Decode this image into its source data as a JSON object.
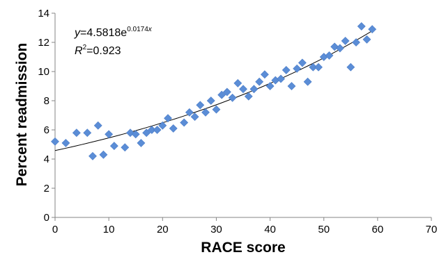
{
  "chart_data": {
    "type": "scatter",
    "title": "",
    "xlabel": "RACE score",
    "ylabel": "Percent readmission",
    "xlim": [
      0,
      70
    ],
    "ylim": [
      0,
      14
    ],
    "xticks": [
      "0",
      "10",
      "20",
      "30",
      "40",
      "50",
      "60",
      "70"
    ],
    "yticks": [
      "0",
      "2",
      "4",
      "6",
      "8",
      "10",
      "12",
      "14"
    ],
    "grid": false,
    "marker_color": "#5B8DD6",
    "trendline": {
      "type": "exponential",
      "a": 4.5818,
      "b": 0.0174,
      "equation_prefix": "y",
      "equation_eq": "=4.5818e",
      "equation_exp": "0.0174",
      "equation_exp_var": "x",
      "r2_label": "R",
      "r2_sup": "2",
      "r2_value": "=0.923"
    },
    "points": [
      {
        "x": 0,
        "y": 5.2
      },
      {
        "x": 2,
        "y": 5.1
      },
      {
        "x": 4,
        "y": 5.8
      },
      {
        "x": 6,
        "y": 5.8
      },
      {
        "x": 7,
        "y": 4.2
      },
      {
        "x": 8,
        "y": 6.3
      },
      {
        "x": 9,
        "y": 4.3
      },
      {
        "x": 10,
        "y": 5.7
      },
      {
        "x": 11,
        "y": 4.9
      },
      {
        "x": 13,
        "y": 4.8
      },
      {
        "x": 14,
        "y": 5.8
      },
      {
        "x": 15,
        "y": 5.7
      },
      {
        "x": 16,
        "y": 5.1
      },
      {
        "x": 17,
        "y": 5.8
      },
      {
        "x": 18,
        "y": 6.0
      },
      {
        "x": 19,
        "y": 6.0
      },
      {
        "x": 20,
        "y": 6.3
      },
      {
        "x": 21,
        "y": 6.8
      },
      {
        "x": 22,
        "y": 6.1
      },
      {
        "x": 24,
        "y": 6.5
      },
      {
        "x": 25,
        "y": 7.2
      },
      {
        "x": 26,
        "y": 6.9
      },
      {
        "x": 27,
        "y": 7.7
      },
      {
        "x": 28,
        "y": 7.2
      },
      {
        "x": 29,
        "y": 8.0
      },
      {
        "x": 30,
        "y": 7.4
      },
      {
        "x": 31,
        "y": 8.4
      },
      {
        "x": 32,
        "y": 8.6
      },
      {
        "x": 33,
        "y": 8.2
      },
      {
        "x": 34,
        "y": 9.2
      },
      {
        "x": 35,
        "y": 8.8
      },
      {
        "x": 36,
        "y": 8.3
      },
      {
        "x": 37,
        "y": 8.8
      },
      {
        "x": 38,
        "y": 9.3
      },
      {
        "x": 39,
        "y": 9.8
      },
      {
        "x": 40,
        "y": 9.0
      },
      {
        "x": 41,
        "y": 9.4
      },
      {
        "x": 42,
        "y": 9.5
      },
      {
        "x": 43,
        "y": 10.1
      },
      {
        "x": 44,
        "y": 9.0
      },
      {
        "x": 45,
        "y": 10.2
      },
      {
        "x": 46,
        "y": 10.6
      },
      {
        "x": 47,
        "y": 9.3
      },
      {
        "x": 48,
        "y": 10.3
      },
      {
        "x": 49,
        "y": 10.3
      },
      {
        "x": 50,
        "y": 11.0
      },
      {
        "x": 51,
        "y": 11.1
      },
      {
        "x": 52,
        "y": 11.7
      },
      {
        "x": 53,
        "y": 11.6
      },
      {
        "x": 54,
        "y": 12.1
      },
      {
        "x": 55,
        "y": 10.3
      },
      {
        "x": 56,
        "y": 12.0
      },
      {
        "x": 57,
        "y": 13.1
      },
      {
        "x": 58,
        "y": 12.2
      },
      {
        "x": 59,
        "y": 12.9
      }
    ]
  }
}
